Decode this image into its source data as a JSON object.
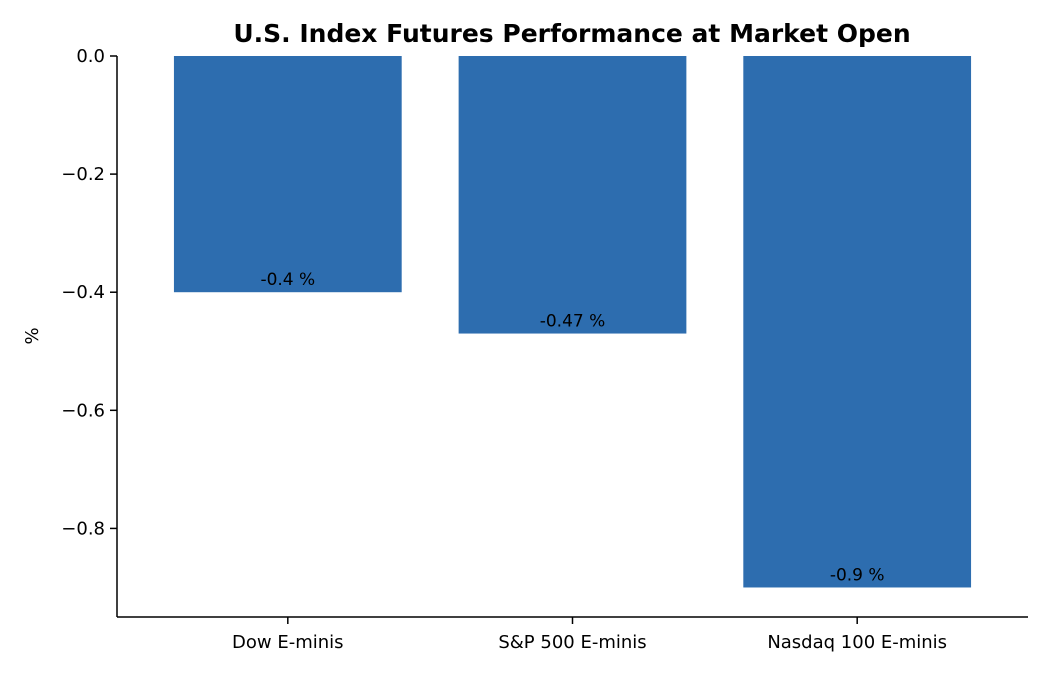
{
  "chart_data": {
    "type": "bar",
    "title": "U.S. Index Futures Performance at Market Open",
    "xlabel": "",
    "ylabel": "%",
    "categories": [
      "Dow E-minis",
      "S&P 500 E-minis",
      "Nasdaq 100 E-minis"
    ],
    "values": [
      -0.4,
      -0.47,
      -0.9
    ],
    "data_labels": [
      "-0.4 %",
      "-0.47 %",
      "-0.9 %"
    ],
    "ylim": [
      -0.95,
      0.0
    ],
    "yticks": [
      0.0,
      -0.2,
      -0.4,
      -0.6,
      -0.8
    ],
    "ytick_labels": [
      "0.0",
      "−0.2",
      "−0.4",
      "−0.6",
      "−0.8"
    ],
    "grid": false,
    "legend": "none",
    "bar_color": "#2d6daf"
  }
}
